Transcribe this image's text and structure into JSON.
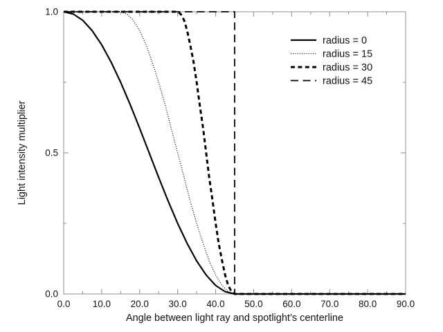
{
  "figure": {
    "background": "#ffffff",
    "frame_color": "#8c8c8c",
    "text_color": "#111111",
    "curve_color": "#000000"
  },
  "chart_data": {
    "type": "line",
    "title": "",
    "xlabel": "Angle between light ray and spotlight’s centerline",
    "ylabel": "Light intensity multiplier",
    "xlim": [
      0,
      90
    ],
    "ylim": [
      0,
      1
    ],
    "grid": false,
    "legend_position": "upper right",
    "x_major_ticks": [
      0,
      10,
      20,
      30,
      40,
      50,
      60,
      70,
      80,
      90
    ],
    "x_minor_ticks": [
      5,
      15,
      25,
      35,
      45,
      55,
      65,
      75,
      85
    ],
    "x_tick_labels": [
      "0.0",
      "10.0",
      "20.0",
      "30.0",
      "40.0",
      "50.0",
      "60.0",
      "70.0",
      "80.0",
      "90.0"
    ],
    "y_major_ticks": [
      0,
      0.5,
      1
    ],
    "y_minor_ticks": [
      0.25,
      0.75
    ],
    "y_tick_labels": [
      "0.0",
      "0.5",
      "1.0"
    ],
    "cutoff_angle": 45,
    "series": [
      {
        "name": "radius-0",
        "label": "radius = 0",
        "radius": 0,
        "line_style": "solid",
        "stroke_width": 2.2,
        "dash": "",
        "points": [
          [
            0,
            1
          ],
          [
            2.5,
            0.992
          ],
          [
            5,
            0.97
          ],
          [
            7.5,
            0.933
          ],
          [
            10,
            0.883
          ],
          [
            12.5,
            0.821
          ],
          [
            15,
            0.75
          ],
          [
            17.5,
            0.671
          ],
          [
            20,
            0.587
          ],
          [
            22.5,
            0.5
          ],
          [
            25,
            0.413
          ],
          [
            27.5,
            0.329
          ],
          [
            30,
            0.25
          ],
          [
            32.5,
            0.179
          ],
          [
            35,
            0.117
          ],
          [
            37.5,
            0.067
          ],
          [
            40,
            0.03
          ],
          [
            42.5,
            0.008
          ],
          [
            45,
            0
          ],
          [
            90,
            0
          ]
        ]
      },
      {
        "name": "radius-15",
        "label": "radius = 15",
        "radius": 15,
        "line_style": "dotted",
        "stroke_width": 1.3,
        "dash": "1 2.2",
        "points": [
          [
            0,
            1
          ],
          [
            15,
            1
          ],
          [
            16.7,
            0.992
          ],
          [
            18.3,
            0.97
          ],
          [
            20,
            0.933
          ],
          [
            21.7,
            0.883
          ],
          [
            23.3,
            0.821
          ],
          [
            25,
            0.75
          ],
          [
            26.7,
            0.671
          ],
          [
            28.3,
            0.587
          ],
          [
            30,
            0.5
          ],
          [
            31.7,
            0.413
          ],
          [
            33.3,
            0.329
          ],
          [
            35,
            0.25
          ],
          [
            36.7,
            0.179
          ],
          [
            38.3,
            0.117
          ],
          [
            40,
            0.067
          ],
          [
            41.7,
            0.03
          ],
          [
            43.3,
            0.008
          ],
          [
            45,
            0
          ],
          [
            90,
            0
          ]
        ]
      },
      {
        "name": "radius-30",
        "label": "radius = 30",
        "radius": 30,
        "line_style": "short-dash",
        "stroke_width": 3,
        "dash": "6 4.4",
        "points": [
          [
            0,
            1
          ],
          [
            30,
            1
          ],
          [
            30.8,
            0.992
          ],
          [
            31.7,
            0.97
          ],
          [
            32.5,
            0.933
          ],
          [
            33.3,
            0.883
          ],
          [
            34.2,
            0.821
          ],
          [
            35,
            0.75
          ],
          [
            35.8,
            0.671
          ],
          [
            36.7,
            0.587
          ],
          [
            37.5,
            0.5
          ],
          [
            38.3,
            0.413
          ],
          [
            39.2,
            0.329
          ],
          [
            40,
            0.25
          ],
          [
            40.8,
            0.179
          ],
          [
            41.7,
            0.117
          ],
          [
            42.5,
            0.067
          ],
          [
            43.3,
            0.03
          ],
          [
            44.2,
            0.008
          ],
          [
            45,
            0
          ],
          [
            90,
            0
          ]
        ]
      },
      {
        "name": "radius-45",
        "label": "radius = 45",
        "radius": 45,
        "line_style": "long-dash",
        "stroke_width": 1.8,
        "dash": "11 6.5",
        "points": [
          [
            0,
            1
          ],
          [
            45,
            1
          ],
          [
            45,
            0
          ],
          [
            90,
            0
          ]
        ]
      }
    ]
  }
}
